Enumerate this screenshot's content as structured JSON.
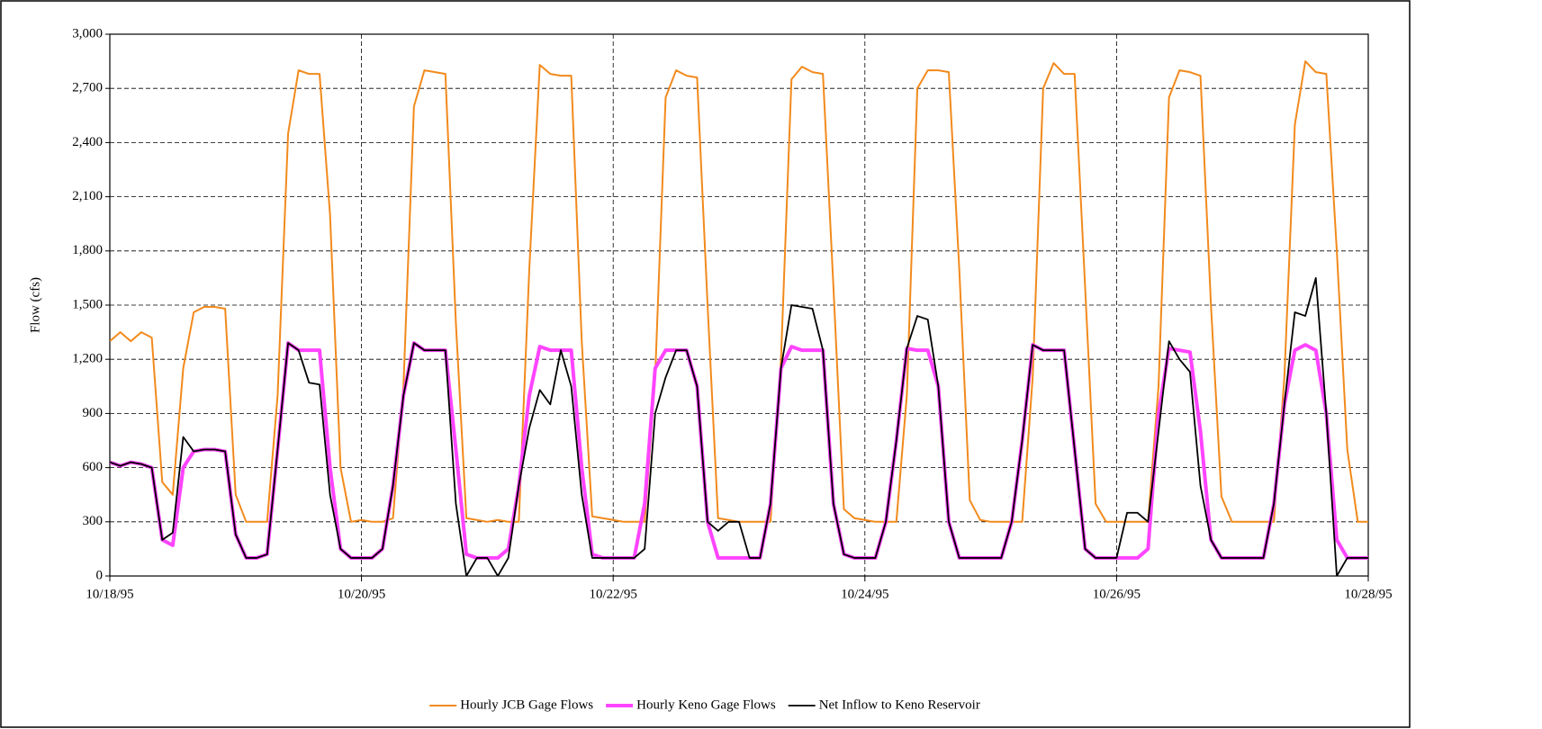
{
  "chart_data": {
    "type": "line",
    "y_label": "Flow (cfs)",
    "categories": [
      "10/18/95",
      null,
      null,
      null,
      null,
      null,
      null,
      null,
      null,
      null,
      null,
      null,
      null,
      null,
      null,
      null,
      null,
      null,
      null,
      null,
      null,
      null,
      null,
      null,
      "10/20/95",
      null,
      null,
      null,
      null,
      null,
      null,
      null,
      null,
      null,
      null,
      null,
      null,
      null,
      null,
      null,
      null,
      null,
      null,
      null,
      null,
      null,
      null,
      null,
      "10/22/95",
      null,
      null,
      null,
      null,
      null,
      null,
      null,
      null,
      null,
      null,
      null,
      null,
      null,
      null,
      null,
      null,
      null,
      null,
      null,
      null,
      null,
      null,
      null,
      "10/24/95",
      null,
      null,
      null,
      null,
      null,
      null,
      null,
      null,
      null,
      null,
      null,
      null,
      null,
      null,
      null,
      null,
      null,
      null,
      null,
      null,
      null,
      null,
      null,
      "10/26/95",
      null,
      null,
      null,
      null,
      null,
      null,
      null,
      null,
      null,
      null,
      null,
      null,
      null,
      null,
      null,
      null,
      null,
      null,
      null,
      null,
      null,
      null,
      null,
      "10/28/95"
    ],
    "series": [
      {
        "name": "Hourly JCB Gage Flows",
        "color": "#f28a1c",
        "values": [
          1300,
          1350,
          1300,
          1350,
          1320,
          520,
          450,
          1150,
          1460,
          1490,
          1490,
          1480,
          450,
          300,
          300,
          300,
          1000,
          2450,
          2800,
          2780,
          2780,
          2000,
          600,
          300,
          310,
          300,
          300,
          320,
          1050,
          2600,
          2800,
          2790,
          2780,
          1400,
          320,
          310,
          300,
          310,
          300,
          300,
          1700,
          2830,
          2780,
          2770,
          2770,
          1300,
          330,
          320,
          310,
          300,
          300,
          300,
          1100,
          2650,
          2800,
          2770,
          2760,
          1500,
          320,
          310,
          300,
          300,
          300,
          300,
          1200,
          2750,
          2820,
          2790,
          2780,
          1600,
          370,
          320,
          310,
          300,
          300,
          300,
          1000,
          2700,
          2800,
          2800,
          2790,
          1700,
          420,
          310,
          300,
          300,
          300,
          300,
          1100,
          2700,
          2840,
          2780,
          2780,
          1600,
          400,
          300,
          300,
          300,
          300,
          300,
          1050,
          2650,
          2800,
          2790,
          2770,
          1500,
          440,
          300,
          300,
          300,
          300,
          300,
          1100,
          2500,
          2850,
          2790,
          2780,
          1800,
          700,
          300,
          300
        ]
      },
      {
        "name": "Hourly Keno Gage Flows",
        "color": "#ff44ff",
        "values": [
          630,
          610,
          630,
          620,
          600,
          200,
          170,
          600,
          690,
          700,
          700,
          690,
          230,
          100,
          100,
          120,
          700,
          1290,
          1250,
          1250,
          1250,
          600,
          150,
          100,
          100,
          100,
          150,
          500,
          1000,
          1290,
          1250,
          1250,
          1250,
          700,
          120,
          100,
          100,
          100,
          150,
          500,
          1000,
          1270,
          1250,
          1250,
          1250,
          600,
          120,
          100,
          100,
          100,
          100,
          400,
          1150,
          1250,
          1250,
          1250,
          1050,
          300,
          100,
          100,
          100,
          100,
          100,
          400,
          1150,
          1270,
          1250,
          1250,
          1250,
          400,
          120,
          100,
          100,
          100,
          300,
          750,
          1260,
          1250,
          1250,
          1050,
          300,
          100,
          100,
          100,
          100,
          100,
          300,
          750,
          1280,
          1250,
          1250,
          1250,
          700,
          150,
          100,
          100,
          100,
          100,
          100,
          150,
          900,
          1260,
          1250,
          1240,
          800,
          200,
          100,
          100,
          100,
          100,
          100,
          400,
          950,
          1250,
          1280,
          1250,
          900,
          200,
          100,
          100,
          100
        ]
      },
      {
        "name": "Net Inflow to Keno Reservoir",
        "color": "#000000",
        "values": [
          630,
          610,
          630,
          620,
          600,
          200,
          240,
          770,
          690,
          700,
          700,
          690,
          230,
          100,
          100,
          120,
          700,
          1290,
          1250,
          1070,
          1060,
          450,
          150,
          100,
          100,
          100,
          150,
          500,
          1000,
          1290,
          1250,
          1250,
          1250,
          400,
          0,
          100,
          100,
          0,
          100,
          500,
          820,
          1030,
          950,
          1250,
          1050,
          450,
          100,
          100,
          100,
          100,
          100,
          150,
          900,
          1100,
          1250,
          1250,
          1050,
          300,
          250,
          300,
          300,
          100,
          100,
          400,
          1150,
          1500,
          1490,
          1480,
          1250,
          400,
          120,
          100,
          100,
          100,
          300,
          750,
          1260,
          1440,
          1420,
          1050,
          300,
          100,
          100,
          100,
          100,
          100,
          300,
          750,
          1280,
          1250,
          1250,
          1250,
          700,
          150,
          100,
          100,
          100,
          350,
          350,
          300,
          800,
          1300,
          1200,
          1130,
          500,
          200,
          100,
          100,
          100,
          100,
          100,
          400,
          950,
          1460,
          1440,
          1650,
          900,
          0,
          100,
          100,
          100
        ]
      }
    ],
    "ylim": [
      0,
      3000
    ],
    "yticks": [
      0,
      300,
      600,
      900,
      {
        "value": 1200,
        "label": "1,200"
      },
      {
        "value": 1500,
        "label": "1,500"
      },
      {
        "value": 1800,
        "label": "1,800"
      },
      {
        "value": 2100,
        "label": "2,100"
      },
      {
        "value": 2400,
        "label": "2,400"
      },
      {
        "value": 2700,
        "label": "2,700"
      },
      {
        "value": 3000,
        "label": "3,000"
      }
    ],
    "grid": true,
    "legend": "bottom"
  }
}
